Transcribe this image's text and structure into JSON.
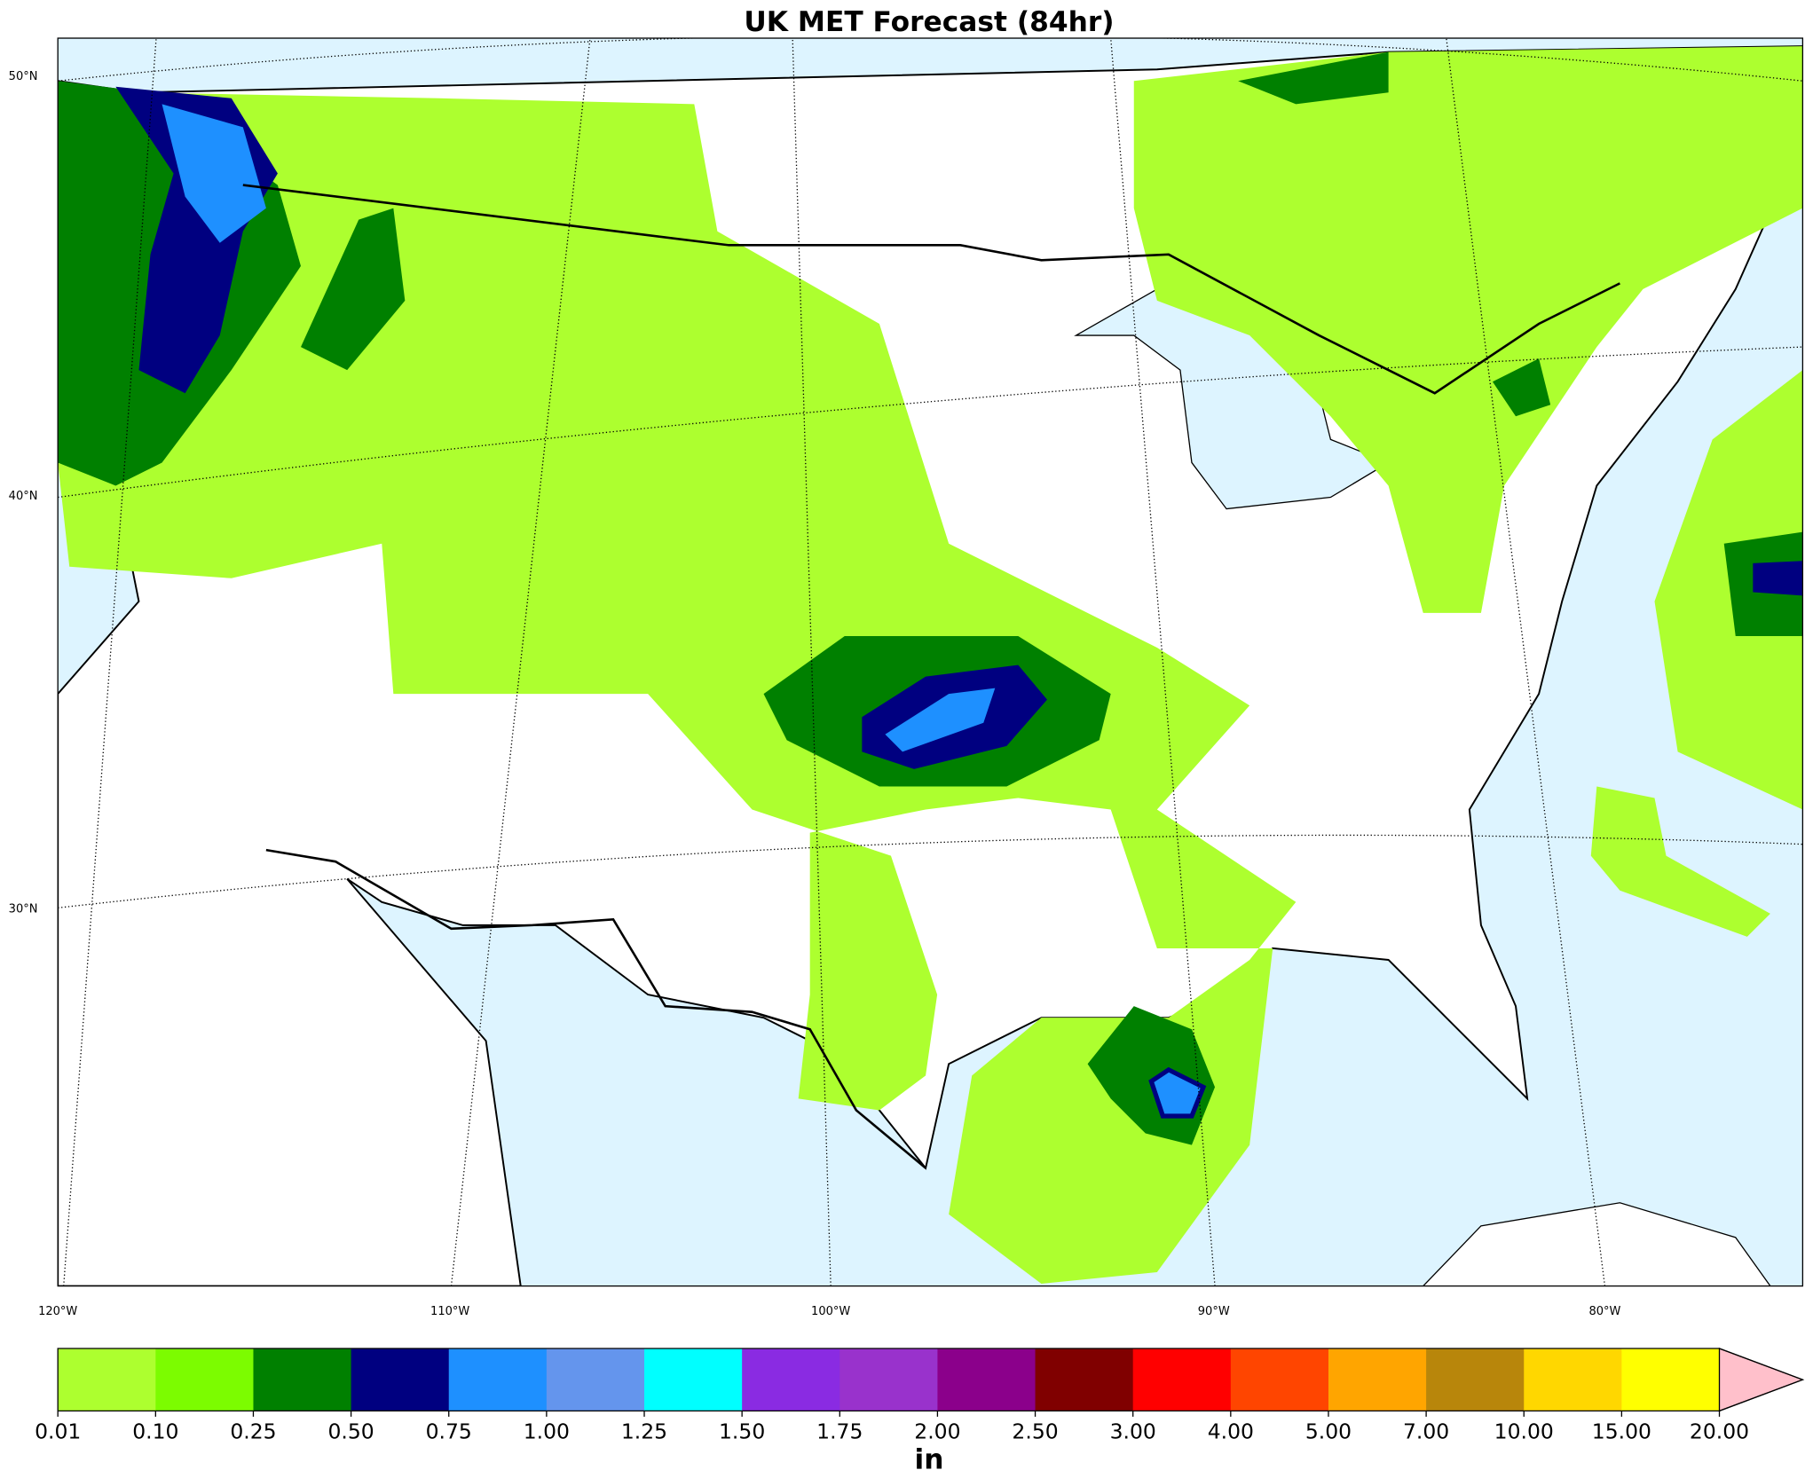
{
  "title": "UK MET Forecast (84hr)",
  "lat_labels": [
    "50°N",
    "40°N",
    "30°N"
  ],
  "lon_labels": [
    "120°W",
    "110°W",
    "100°W",
    "90°W",
    "80°W"
  ],
  "colorbar": {
    "ticks": [
      "0.01",
      "0.10",
      "0.25",
      "0.50",
      "0.75",
      "1.00",
      "1.25",
      "1.50",
      "1.75",
      "2.00",
      "2.50",
      "3.00",
      "4.00",
      "5.00",
      "7.00",
      "10.00",
      "15.00",
      "20.00"
    ],
    "colors": [
      "#adff2f",
      "#7cfc00",
      "#008000",
      "#000080",
      "#1e90ff",
      "#6495ed",
      "#00ffff",
      "#8a2be2",
      "#9932cc",
      "#8b008b",
      "#800000",
      "#ff0000",
      "#ff4500",
      "#ffa500",
      "#b8860b",
      "#ffd700",
      "#ffff00"
    ],
    "extend_color": "#ffc0cb",
    "unit": "in"
  }
}
